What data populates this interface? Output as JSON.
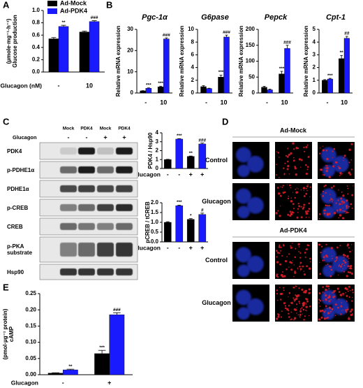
{
  "panel_labels": [
    "A",
    "B",
    "C",
    "D",
    "E"
  ],
  "chart_data": [
    {
      "type": "bar",
      "ylabel": [
        "Glucose production",
        "(µmole·mg⁻¹·h⁻¹)"
      ],
      "xlabel": "Glucagon (nM)",
      "categories": [
        "-",
        "10"
      ],
      "series": [
        {
          "name": "Ad-Mock",
          "color": "#000000",
          "values": [
            0.54,
            0.65
          ],
          "errors": [
            0.02,
            0.015
          ],
          "annotations": [
            null,
            null
          ]
        },
        {
          "name": "Ad-PDK4",
          "color": "#1a1aff",
          "values": [
            0.74,
            0.82
          ],
          "errors": [
            0.02,
            0.015
          ],
          "annotations": [
            "**",
            "###"
          ]
        }
      ],
      "ylim": [
        0,
        1
      ],
      "yticks": [
        {
          "value": 0,
          "label": "0.0"
        },
        0.2,
        0.4,
        0.6,
        0.8,
        {
          "value": 1,
          "label": "1.0"
        }
      ],
      "legend": "upper left"
    },
    {
      "type": "bar",
      "title": "Pgc-1α",
      "ylabel": "Relative mRNA expression",
      "categories": [
        "-",
        "10"
      ],
      "series": [
        {
          "color": "#000000",
          "values": [
            1.0,
            2.9
          ],
          "errors": [
            0.1,
            0.3
          ],
          "annotations": [
            null,
            "***"
          ]
        },
        {
          "color": "#1a1aff",
          "values": [
            2.2,
            25.5
          ],
          "errors": [
            0.2,
            0.5
          ],
          "annotations": [
            "***",
            "###"
          ]
        }
      ],
      "ylim": [
        0,
        30
      ],
      "yticks": [
        0,
        10,
        20,
        30
      ]
    },
    {
      "type": "bar",
      "title": "G6pase",
      "ylabel": "Relative mRNA expression",
      "categories": [
        "-",
        "10"
      ],
      "series": [
        {
          "color": "#000000",
          "values": [
            1.0,
            2.5
          ],
          "errors": [
            0.15,
            0.3
          ],
          "annotations": [
            null,
            "***"
          ]
        },
        {
          "color": "#1a1aff",
          "values": [
            0.7,
            8.8
          ],
          "errors": [
            0.05,
            0.3
          ],
          "annotations": [
            null,
            "###"
          ]
        }
      ],
      "ylim": [
        0,
        10
      ],
      "yticks": [
        0,
        2,
        4,
        6,
        8,
        10
      ]
    },
    {
      "type": "bar",
      "title": "Pepck",
      "ylabel": "Relative mRNA expression",
      "categories": [
        "-",
        "10"
      ],
      "series": [
        {
          "color": "#000000",
          "values": [
            18,
            60
          ],
          "errors": [
            3,
            8
          ],
          "annotations": [
            null,
            "***"
          ]
        },
        {
          "color": "#1a1aff",
          "values": [
            10,
            140
          ],
          "errors": [
            2,
            10
          ],
          "annotations": [
            null,
            "###"
          ]
        }
      ],
      "ylim": [
        0,
        200
      ],
      "yticks": [
        0,
        50,
        100,
        150,
        200
      ]
    },
    {
      "type": "bar",
      "title": "Cpt-1",
      "ylabel": "Relative mRNA expression",
      "categories": [
        "-",
        "10"
      ],
      "series": [
        {
          "color": "#000000",
          "values": [
            1.0,
            2.7
          ],
          "errors": [
            0.05,
            0.25
          ],
          "annotations": [
            null,
            "**"
          ]
        },
        {
          "color": "#1a1aff",
          "values": [
            1.1,
            4.3
          ],
          "errors": [
            0.05,
            0.15
          ],
          "annotations": [
            "***",
            "##"
          ]
        }
      ],
      "ylim": [
        0,
        5
      ],
      "yticks": [
        0,
        1,
        2,
        3,
        4,
        5
      ]
    },
    {
      "type": "bar",
      "ylabel": "PDK4 / Hsp90",
      "xlabel": "Glucagon",
      "categories": [
        "-",
        "-",
        "+",
        "+"
      ],
      "values": [
        1.0,
        3.3,
        1.35,
        2.75
      ],
      "errors": [
        0.03,
        0.05,
        0.05,
        0.1
      ],
      "colors": [
        "#000000",
        "#1a1aff",
        "#000000",
        "#1a1aff"
      ],
      "annotations": [
        null,
        "***",
        "**",
        "###"
      ],
      "ylim": [
        0,
        4
      ],
      "yticks": [
        0,
        1,
        2,
        3,
        4
      ]
    },
    {
      "type": "bar",
      "ylabel": "pCREB / tCREB",
      "xlabel": "Glucagon",
      "categories": [
        "-",
        "-",
        "+",
        "+"
      ],
      "values": [
        1.0,
        1.85,
        1.15,
        1.4
      ],
      "errors": [
        0.03,
        0.03,
        0.04,
        0.07
      ],
      "colors": [
        "#000000",
        "#1a1aff",
        "#000000",
        "#1a1aff"
      ],
      "annotations": [
        null,
        "***",
        "*",
        "#"
      ],
      "ylim": [
        0,
        2
      ],
      "yticks": [
        {
          "value": 0,
          "label": "0.0"
        },
        0.5,
        {
          "value": 1,
          "label": "1.0"
        },
        1.5,
        {
          "value": 2,
          "label": "2.0"
        }
      ]
    },
    {
      "type": "bar",
      "ylabel": [
        "cAMP",
        "(pmol·µg⁻¹ protein)"
      ],
      "xlabel": "Glucagon",
      "categories": [
        "-",
        "+"
      ],
      "series": [
        {
          "color": "#000000",
          "values": [
            0.005,
            0.065
          ],
          "errors": [
            0.001,
            0.01
          ],
          "annotations": [
            null,
            "***"
          ]
        },
        {
          "color": "#1a1aff",
          "values": [
            0.015,
            0.185
          ],
          "errors": [
            0.002,
            0.006
          ],
          "annotations": [
            "**",
            "###"
          ]
        }
      ],
      "ylim": [
        0,
        0.25
      ],
      "yticks": [
        {
          "value": 0,
          "label": "0.00"
        },
        {
          "value": 0.05,
          "label": "0.05"
        },
        {
          "value": 0.1,
          "label": "0.10"
        },
        {
          "value": 0.15,
          "label": "0.15"
        },
        {
          "value": 0.2,
          "label": "0.20"
        },
        {
          "value": 0.25,
          "label": "0.25"
        }
      ]
    }
  ],
  "blot": {
    "lanes": [
      "Mock",
      "PDK4",
      "Mock",
      "PDK4"
    ],
    "treatment_label": "Glucagon",
    "treatment": [
      "-",
      "-",
      "+",
      "+"
    ],
    "rows": [
      "PDK4",
      "p-PDHE1α",
      "PDHE1α",
      "p-CREB",
      "CREB",
      "p-PKA substrate",
      "Hsp90"
    ]
  },
  "imaging": {
    "groups": [
      {
        "title": "Ad-Mock",
        "rows": [
          "Control",
          "Glucagon"
        ]
      },
      {
        "title": "Ad-PDK4",
        "rows": [
          "Control",
          "Glucagon"
        ]
      }
    ]
  }
}
